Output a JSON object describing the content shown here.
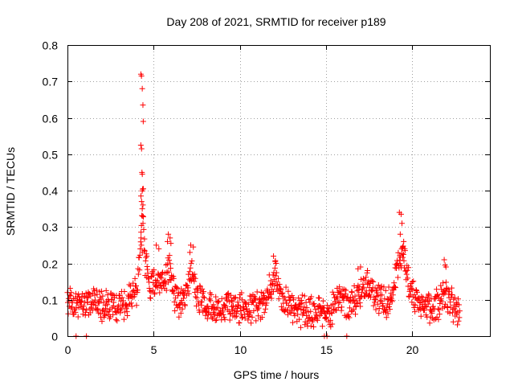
{
  "chart_data": {
    "type": "scatter",
    "title": "Day 208 of 2021, SRMTID for receiver p189",
    "xlabel": "GPS time / hours",
    "ylabel": "SRMTID / TECUs",
    "xlim": [
      0,
      24.5
    ],
    "ylim": [
      0,
      0.8
    ],
    "xticks": [
      "0",
      "5",
      "10",
      "15",
      "20"
    ],
    "yticks": [
      "0",
      "0.1",
      "0.2",
      "0.3",
      "0.4",
      "0.5",
      "0.6",
      "0.7",
      "0.8"
    ],
    "grid": true,
    "marker": "plus",
    "series": [
      {
        "name": "SRMTID",
        "color": "#ff0000",
        "description": "Dense scatter of SRMTID values between 0 and 23 hours; baseline mostly 0.05–0.12 TECU with a spike near 4.3 h reaching 0.72, secondary peaks near 5.8 h (0.28), 7.2 h (0.25), 12 h (0.22), 19.3 h (0.34), 22 h (0.21); a few zero-value points near 0.5, 1.1, 15 and 16.2 h.",
        "anchor_x": [
          0.0,
          0.5,
          1.0,
          1.5,
          2.0,
          2.5,
          3.0,
          3.5,
          4.0,
          4.2,
          4.35,
          4.5,
          4.8,
          5.2,
          5.6,
          5.9,
          6.3,
          6.8,
          7.2,
          7.6,
          8.0,
          8.5,
          9.0,
          9.5,
          10.0,
          10.5,
          11.0,
          11.5,
          11.9,
          12.1,
          12.4,
          12.8,
          13.5,
          14.0,
          14.5,
          14.9,
          15.3,
          15.8,
          16.3,
          16.8,
          17.2,
          17.6,
          18.0,
          18.5,
          18.9,
          19.2,
          19.45,
          19.8,
          20.2,
          20.6,
          21.0,
          21.5,
          21.9,
          22.3,
          22.7
        ],
        "anchor_y": [
          0.08,
          0.09,
          0.09,
          0.1,
          0.08,
          0.09,
          0.08,
          0.1,
          0.13,
          0.22,
          0.4,
          0.2,
          0.14,
          0.17,
          0.14,
          0.19,
          0.09,
          0.1,
          0.18,
          0.1,
          0.08,
          0.08,
          0.08,
          0.09,
          0.08,
          0.08,
          0.08,
          0.09,
          0.15,
          0.17,
          0.1,
          0.08,
          0.07,
          0.07,
          0.06,
          0.06,
          0.07,
          0.1,
          0.08,
          0.11,
          0.14,
          0.13,
          0.1,
          0.09,
          0.11,
          0.2,
          0.23,
          0.15,
          0.1,
          0.09,
          0.08,
          0.08,
          0.12,
          0.09,
          0.06
        ]
      }
    ]
  }
}
